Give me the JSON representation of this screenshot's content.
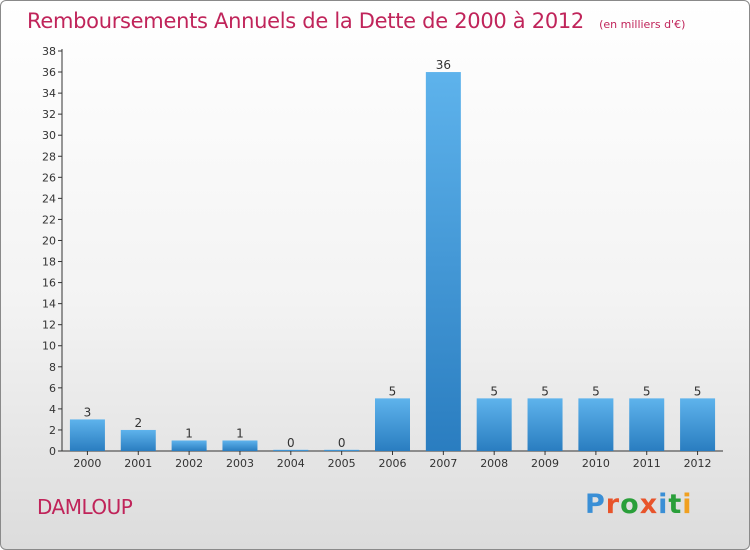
{
  "title": "Remboursements Annuels de la Dette de 2000 à 2012",
  "subtitle": "(en milliers d'€)",
  "location": "DAMLOUP",
  "brand": "Proxiti",
  "colors": {
    "title": "#c0245a",
    "bar_light": "#5eb3ec",
    "bar_dark": "#2a7dc0",
    "axis": "#333333",
    "brand": [
      "#3a8fd6",
      "#e8542b",
      "#2a9f3a",
      "#e8542b",
      "#3a8fd6",
      "#2a9f3a",
      "#f0a020"
    ]
  },
  "chart_data": {
    "type": "bar",
    "title": "Remboursements Annuels de la Dette de 2000 à 2012",
    "subtitle": "(en milliers d'€)",
    "categories": [
      "2000",
      "2001",
      "2002",
      "2003",
      "2004",
      "2005",
      "2006",
      "2007",
      "2008",
      "2009",
      "2010",
      "2011",
      "2012"
    ],
    "values": [
      3,
      2,
      1,
      1,
      0,
      0,
      5,
      36,
      5,
      5,
      5,
      5,
      5
    ],
    "data_labels": [
      "3",
      "2",
      "1",
      "1",
      "0",
      "0",
      "5",
      "36",
      "5",
      "5",
      "5",
      "5",
      "5"
    ],
    "yticks": [
      "0",
      "2",
      "4",
      "6",
      "8",
      "10",
      "12",
      "14",
      "16",
      "18",
      "20",
      "22",
      "24",
      "26",
      "28",
      "30",
      "32",
      "34",
      "36",
      "38"
    ],
    "ylim": [
      0,
      38
    ],
    "xlabel": "",
    "ylabel": "",
    "grid": false,
    "legend": false
  }
}
